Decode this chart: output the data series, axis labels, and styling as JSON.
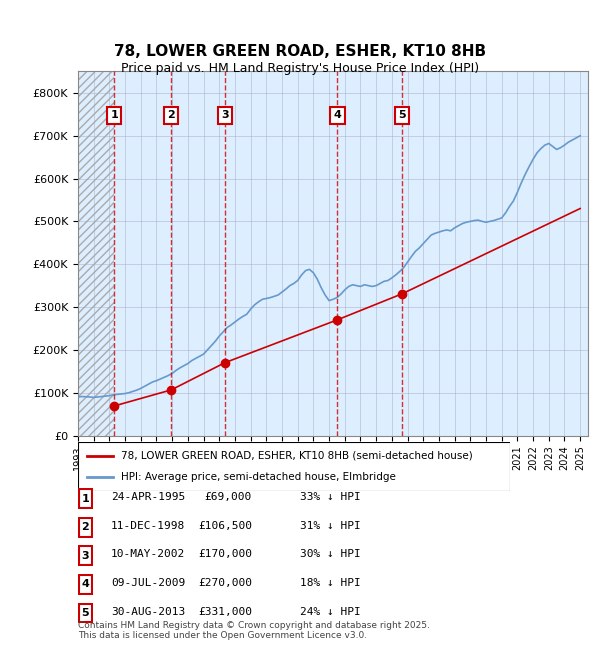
{
  "title": "78, LOWER GREEN ROAD, ESHER, KT10 8HB",
  "subtitle": "Price paid vs. HM Land Registry's House Price Index (HPI)",
  "xlabel": "",
  "ylabel": "",
  "ylim": [
    0,
    850000
  ],
  "yticks": [
    0,
    100000,
    200000,
    300000,
    400000,
    500000,
    600000,
    700000,
    800000
  ],
  "ytick_labels": [
    "£0",
    "£100K",
    "£200K",
    "£300K",
    "£400K",
    "£500K",
    "£600K",
    "£700K",
    "£800K"
  ],
  "xlim_start": 1993.0,
  "xlim_end": 2025.5,
  "sales": [
    {
      "num": 1,
      "date": "24-APR-1995",
      "year": 1995.31,
      "price": 69000,
      "pct": "33% ↓ HPI"
    },
    {
      "num": 2,
      "date": "11-DEC-1998",
      "year": 1998.94,
      "price": 106500,
      "pct": "31% ↓ HPI"
    },
    {
      "num": 3,
      "date": "10-MAY-2002",
      "year": 2002.36,
      "price": 170000,
      "pct": "30% ↓ HPI"
    },
    {
      "num": 4,
      "date": "09-JUL-2009",
      "year": 2009.52,
      "price": 270000,
      "pct": "18% ↓ HPI"
    },
    {
      "num": 5,
      "date": "30-AUG-2013",
      "year": 2013.66,
      "price": 331000,
      "pct": "24% ↓ HPI"
    }
  ],
  "hpi_x": [
    1993.0,
    1993.25,
    1993.5,
    1993.75,
    1994.0,
    1994.25,
    1994.5,
    1994.75,
    1995.0,
    1995.25,
    1995.5,
    1995.75,
    1996.0,
    1996.25,
    1996.5,
    1996.75,
    1997.0,
    1997.25,
    1997.5,
    1997.75,
    1998.0,
    1998.25,
    1998.5,
    1998.75,
    1999.0,
    1999.25,
    1999.5,
    1999.75,
    2000.0,
    2000.25,
    2000.5,
    2000.75,
    2001.0,
    2001.25,
    2001.5,
    2001.75,
    2002.0,
    2002.25,
    2002.5,
    2002.75,
    2003.0,
    2003.25,
    2003.5,
    2003.75,
    2004.0,
    2004.25,
    2004.5,
    2004.75,
    2005.0,
    2005.25,
    2005.5,
    2005.75,
    2006.0,
    2006.25,
    2006.5,
    2006.75,
    2007.0,
    2007.25,
    2007.5,
    2007.75,
    2008.0,
    2008.25,
    2008.5,
    2008.75,
    2009.0,
    2009.25,
    2009.5,
    2009.75,
    2010.0,
    2010.25,
    2010.5,
    2010.75,
    2011.0,
    2011.25,
    2011.5,
    2011.75,
    2012.0,
    2012.25,
    2012.5,
    2012.75,
    2013.0,
    2013.25,
    2013.5,
    2013.75,
    2014.0,
    2014.25,
    2014.5,
    2014.75,
    2015.0,
    2015.25,
    2015.5,
    2015.75,
    2016.0,
    2016.25,
    2016.5,
    2016.75,
    2017.0,
    2017.25,
    2017.5,
    2017.75,
    2018.0,
    2018.25,
    2018.5,
    2018.75,
    2019.0,
    2019.25,
    2019.5,
    2019.75,
    2020.0,
    2020.25,
    2020.5,
    2020.75,
    2021.0,
    2021.25,
    2021.5,
    2021.75,
    2022.0,
    2022.25,
    2022.5,
    2022.75,
    2023.0,
    2023.25,
    2023.5,
    2023.75,
    2024.0,
    2024.25,
    2024.5,
    2024.75,
    2025.0
  ],
  "hpi_y": [
    90000,
    91000,
    90500,
    90000,
    89000,
    90000,
    91000,
    92000,
    93000,
    95000,
    96000,
    97000,
    98000,
    100000,
    103000,
    106000,
    110000,
    115000,
    120000,
    125000,
    128000,
    132000,
    136000,
    140000,
    145000,
    152000,
    158000,
    163000,
    168000,
    175000,
    180000,
    185000,
    190000,
    200000,
    210000,
    220000,
    232000,
    242000,
    252000,
    258000,
    265000,
    272000,
    278000,
    283000,
    295000,
    305000,
    312000,
    318000,
    320000,
    322000,
    325000,
    328000,
    335000,
    342000,
    350000,
    355000,
    362000,
    375000,
    385000,
    388000,
    380000,
    365000,
    345000,
    328000,
    315000,
    318000,
    322000,
    330000,
    340000,
    348000,
    352000,
    350000,
    348000,
    352000,
    350000,
    348000,
    350000,
    355000,
    360000,
    362000,
    368000,
    375000,
    383000,
    392000,
    405000,
    418000,
    430000,
    438000,
    448000,
    458000,
    468000,
    472000,
    475000,
    478000,
    480000,
    478000,
    485000,
    490000,
    495000,
    498000,
    500000,
    502000,
    503000,
    500000,
    498000,
    500000,
    502000,
    505000,
    508000,
    520000,
    535000,
    548000,
    568000,
    590000,
    610000,
    628000,
    645000,
    660000,
    670000,
    678000,
    682000,
    675000,
    668000,
    672000,
    678000,
    685000,
    690000,
    695000,
    700000
  ],
  "price_line_x": [
    1995.31,
    1998.94,
    2002.36,
    2009.52,
    2013.66,
    2025.0
  ],
  "price_line_y": [
    69000,
    106500,
    170000,
    270000,
    331000,
    530000
  ],
  "red_color": "#cc0000",
  "blue_color": "#6699cc",
  "hatch_color": "#cccccc",
  "bg_color": "#ddeeff",
  "grid_color": "#aaaacc",
  "footnote": "Contains HM Land Registry data © Crown copyright and database right 2025.\nThis data is licensed under the Open Government Licence v3.0.",
  "legend_line1": "78, LOWER GREEN ROAD, ESHER, KT10 8HB (semi-detached house)",
  "legend_line2": "HPI: Average price, semi-detached house, Elmbridge"
}
